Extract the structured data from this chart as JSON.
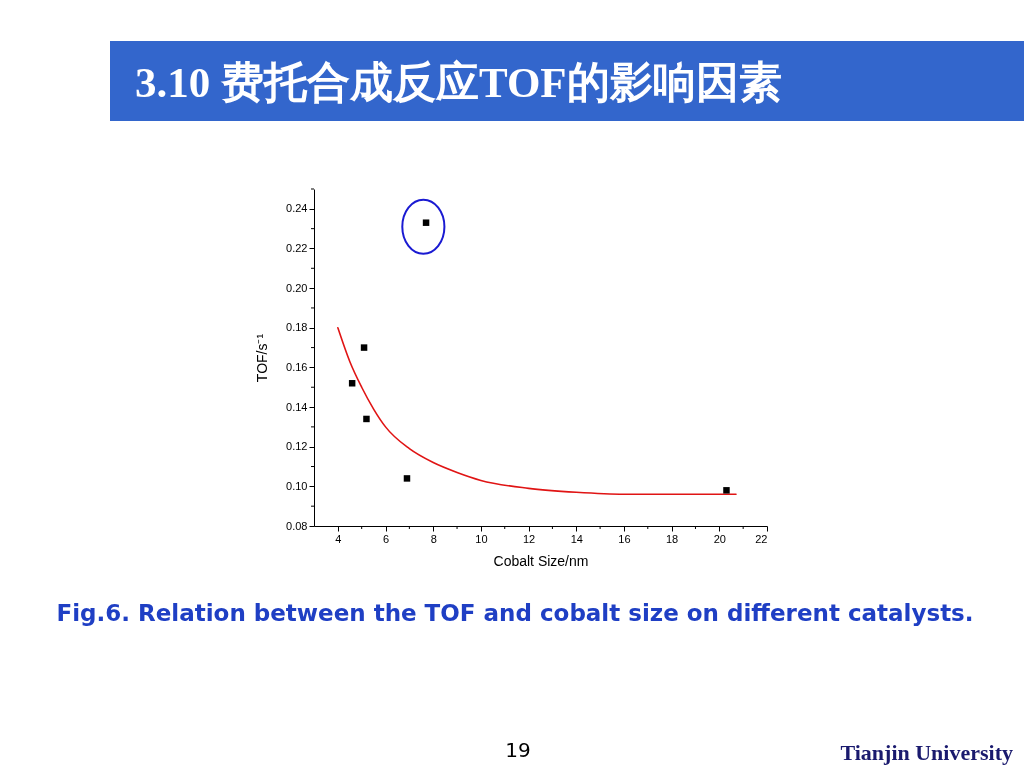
{
  "chart_data": {
    "type": "scatter",
    "title": "3.10 费托合成反应TOF的影响因素",
    "xlabel": "Cobalt Size/nm",
    "ylabel": "TOF/s⁻¹",
    "annotations": [
      "Fig.6. Relation between the TOF and cobalt size on different catalysts.",
      "19",
      "Tianjin University"
    ],
    "xlim": [
      3,
      22
    ],
    "ylim": [
      0.08,
      0.25
    ],
    "xticks": [
      4,
      {
        "value": 5,
        "label": null
      },
      6,
      {
        "value": 7,
        "label": null
      },
      8,
      {
        "value": 9,
        "label": null
      },
      10,
      {
        "value": 11,
        "label": null
      },
      12,
      {
        "value": 13,
        "label": null
      },
      14,
      {
        "value": 15,
        "label": null
      },
      16,
      {
        "value": 17,
        "label": null
      },
      18,
      {
        "value": 19,
        "label": null
      },
      20,
      {
        "value": 21,
        "label": null
      },
      22
    ],
    "yticks": [
      0.08,
      {
        "value": 0.09,
        "label": null
      },
      {
        "value": 0.1,
        "label": "0.10"
      },
      {
        "value": 0.11,
        "label": null
      },
      0.12,
      {
        "value": 0.13,
        "label": null
      },
      0.14,
      {
        "value": 0.15,
        "label": null
      },
      0.16,
      {
        "value": 0.17,
        "label": null
      },
      0.18,
      {
        "value": 0.19,
        "label": null
      },
      {
        "value": 0.2,
        "label": "0.20"
      },
      {
        "value": 0.21,
        "label": null
      },
      0.22,
      {
        "value": 0.23,
        "label": null
      },
      0.24,
      {
        "value": 0.25,
        "label": null
      }
    ],
    "series": [
      {
        "type": "line",
        "marker": "none",
        "color": "#e01414",
        "x": [
          4,
          4.5,
          5,
          5.5,
          6,
          7,
          8,
          9,
          10,
          12,
          14,
          16,
          18,
          20.7
        ],
        "values": [
          0.18,
          0.163,
          0.15,
          0.139,
          0.13,
          0.119,
          0.112,
          0.107,
          0.103,
          0.099,
          0.097,
          0.096,
          0.096,
          0.096
        ]
      },
      {
        "marker": "square",
        "color": "#000000",
        "x": [
          4.6,
          5.1,
          5.2,
          6.9,
          7.7,
          20.3
        ],
        "values": [
          0.152,
          0.17,
          0.134,
          0.104,
          0.233,
          0.098
        ]
      }
    ]
  }
}
